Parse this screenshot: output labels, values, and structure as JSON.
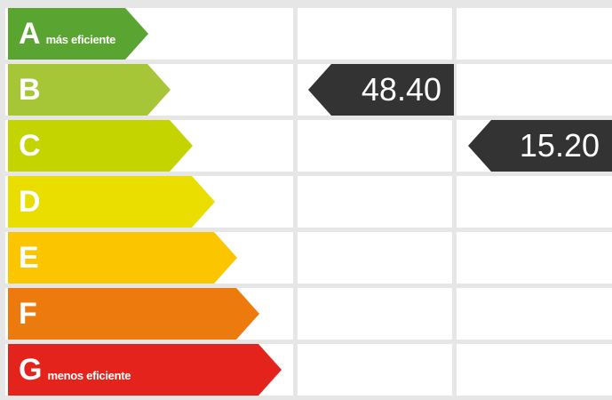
{
  "ratings": [
    {
      "letter": "A",
      "sub": "más eficiente",
      "color": "#5aa532"
    },
    {
      "letter": "B",
      "sub": "",
      "color": "#a6c637"
    },
    {
      "letter": "C",
      "sub": "",
      "color": "#c4d400"
    },
    {
      "letter": "D",
      "sub": "",
      "color": "#eadd00"
    },
    {
      "letter": "E",
      "sub": "",
      "color": "#fbc600"
    },
    {
      "letter": "F",
      "sub": "",
      "color": "#ec7a0c"
    },
    {
      "letter": "G",
      "sub": "menos eficiente",
      "color": "#e4241c"
    }
  ],
  "markers": {
    "col1": {
      "value": "48.40",
      "rating": "B"
    },
    "col2": {
      "value": "15.20",
      "rating": "C"
    }
  }
}
